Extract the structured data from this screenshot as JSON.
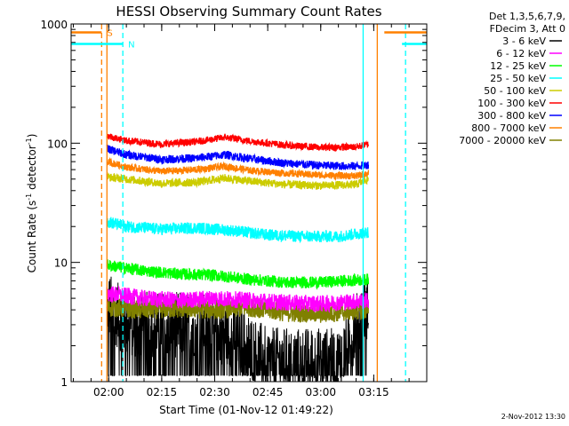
{
  "chart_data": {
    "type": "line",
    "title": "HESSI Observing Summary Count Rates",
    "xlabel": "Start Time (01-Nov-12 01:49:22)",
    "ylabel_main": "Count Rate (s",
    "ylabel_sup1": "-1",
    "ylabel_mid": " detector",
    "ylabel_sup2": "-1",
    "ylabel_end": ")",
    "y_scale": "log",
    "xlim": [
      "01:49:22",
      "03:30:00"
    ],
    "ylim": [
      1,
      1000
    ],
    "x_ticks": [
      "02:00",
      "02:15",
      "02:30",
      "02:45",
      "03:00",
      "03:15"
    ],
    "y_ticks": [
      {
        "label": "1",
        "value": 1
      },
      {
        "label": "10",
        "value": 10
      },
      {
        "label": "100",
        "value": 100
      },
      {
        "label": "1000",
        "value": 1000
      }
    ],
    "legend_header": [
      "Det 1,3,5,6,7,9,",
      "FDecim 3, Att 0"
    ],
    "legend_placement": "right of plot, top",
    "data_start": "01:59:30",
    "data_end": "03:13:30",
    "series": [
      {
        "name": "3 - 6 keV",
        "color": "#000000",
        "x": [
          "01:59:30",
          "02:05",
          "02:15",
          "02:25",
          "02:35",
          "02:45",
          "02:55",
          "03:05",
          "03:13:30"
        ],
        "y": [
          4.5,
          3,
          3,
          3,
          2.5,
          1.5,
          1.5,
          1.5,
          4.5
        ]
      },
      {
        "name": "6 - 12 keV",
        "color": "#ff00ff",
        "x": [
          "01:59:30",
          "02:10",
          "02:20",
          "02:30",
          "02:40",
          "02:50",
          "03:00",
          "03:13:30"
        ],
        "y": [
          5.5,
          5,
          4.8,
          5,
          4.8,
          4.6,
          4.5,
          4.8
        ]
      },
      {
        "name": "12 - 25 keV",
        "color": "#00ff00",
        "x": [
          "01:59:30",
          "02:10",
          "02:20",
          "02:30",
          "02:40",
          "02:50",
          "03:00",
          "03:13:30"
        ],
        "y": [
          9.5,
          8.5,
          8,
          7.8,
          7.2,
          6.8,
          6.8,
          7.2
        ]
      },
      {
        "name": "25 - 50 keV",
        "color": "#00ffff",
        "x": [
          "01:59:30",
          "02:05",
          "02:15",
          "02:25",
          "02:35",
          "02:45",
          "02:55",
          "03:05",
          "03:13:30"
        ],
        "y": [
          22,
          20,
          19,
          19.5,
          18.5,
          17,
          16.5,
          16.5,
          18
        ]
      },
      {
        "name": "50 - 100 keV",
        "color": "#cccc00",
        "x": [
          "01:59:30",
          "02:05",
          "02:15",
          "02:25",
          "02:33",
          "02:40",
          "02:50",
          "03:00",
          "03:10",
          "03:13:30"
        ],
        "y": [
          52,
          50,
          46,
          47,
          51,
          48,
          45,
          44,
          45,
          50
        ]
      },
      {
        "name": "100 - 300 keV",
        "color": "#ff0000",
        "x": [
          "01:59:30",
          "02:05",
          "02:15",
          "02:25",
          "02:33",
          "02:40",
          "02:50",
          "03:00",
          "03:10",
          "03:13:30"
        ],
        "y": [
          115,
          105,
          98,
          103,
          112,
          104,
          96,
          92,
          93,
          98
        ]
      },
      {
        "name": "300 - 800 keV",
        "color": "#0000ff",
        "x": [
          "01:59:30",
          "02:05",
          "02:15",
          "02:25",
          "02:33",
          "02:40",
          "02:50",
          "03:00",
          "03:10",
          "03:13:30"
        ],
        "y": [
          90,
          80,
          73,
          75,
          80,
          74,
          68,
          65,
          64,
          66
        ]
      },
      {
        "name": "800 - 7000 keV",
        "color": "#ff8000",
        "x": [
          "01:59:30",
          "02:05",
          "02:15",
          "02:25",
          "02:33",
          "02:40",
          "02:50",
          "03:00",
          "03:10",
          "03:13:30"
        ],
        "y": [
          70,
          63,
          58,
          60,
          64,
          59,
          56,
          54,
          53,
          56
        ]
      },
      {
        "name": "7000 - 20000 keV",
        "color": "#808000",
        "x": [
          "01:59:30",
          "02:10",
          "02:20",
          "02:30",
          "02:40",
          "02:50",
          "03:00",
          "03:13:30"
        ],
        "y": [
          4.2,
          4,
          4.1,
          4,
          4.2,
          3.8,
          3.7,
          4
        ]
      }
    ],
    "flag_markers": [
      {
        "label": "S",
        "color": "#ff8000",
        "x_start": "01:58:00",
        "x_end": "03:18:00",
        "y": 850
      },
      {
        "label": "N",
        "color": "#00ffff",
        "x_start": "02:04:00",
        "x_end": "03:23:00",
        "y": 680
      }
    ],
    "vertical_lines": [
      {
        "x": "01:58:00",
        "color": "#ff8000",
        "style": "dashed"
      },
      {
        "x": "01:59:30",
        "color": "#ff8000",
        "style": "solid"
      },
      {
        "x": "02:04:00",
        "color": "#00ffff",
        "style": "dashed"
      },
      {
        "x": "03:12:00",
        "color": "#00ffff",
        "style": "solid"
      },
      {
        "x": "03:16:00",
        "color": "#ff8000",
        "style": "solid"
      },
      {
        "x": "03:24:00",
        "color": "#00ffff",
        "style": "dashed"
      }
    ]
  },
  "footer": {
    "date": "2-Nov-2012 13:30"
  }
}
